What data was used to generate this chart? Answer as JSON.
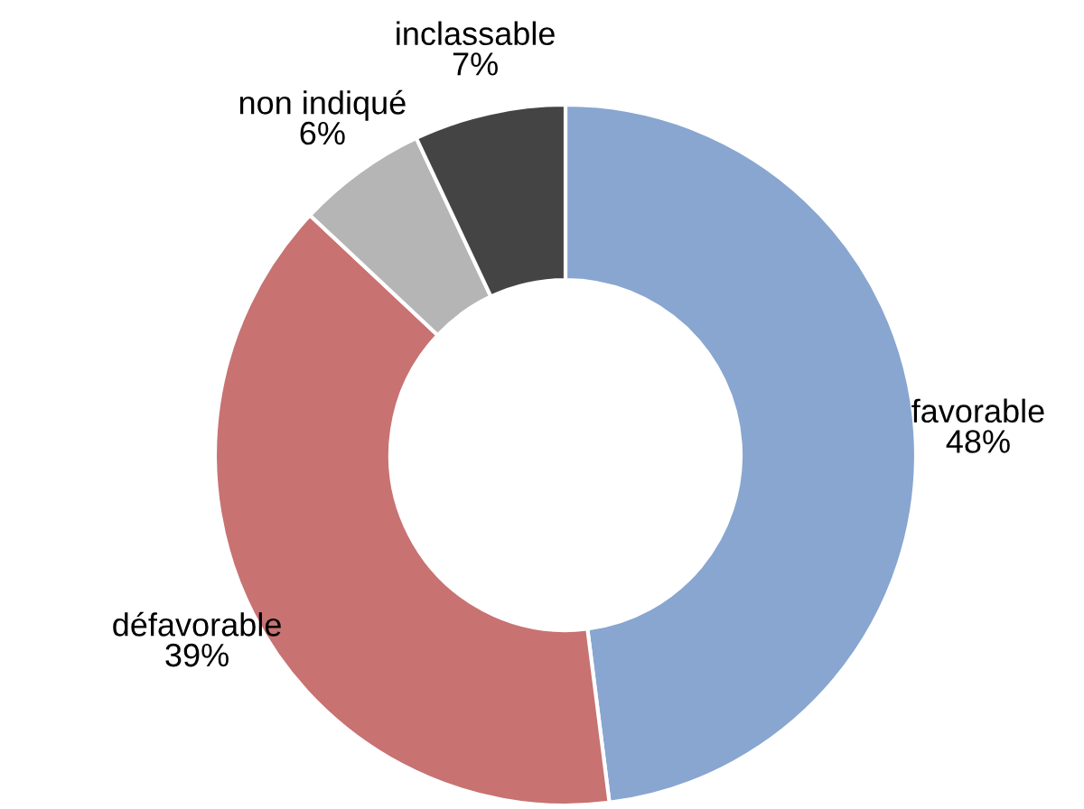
{
  "chart_data": {
    "type": "donut",
    "categories": [
      "favorable",
      "défavorable",
      "non indiqué",
      "inclassable"
    ],
    "values": [
      48,
      39,
      6,
      7
    ],
    "value_labels": [
      "48%",
      "39%",
      "6%",
      "7%"
    ],
    "colors": [
      "#88a6d0",
      "#c87272",
      "#b5b5b5",
      "#444444"
    ],
    "legend": false
  }
}
